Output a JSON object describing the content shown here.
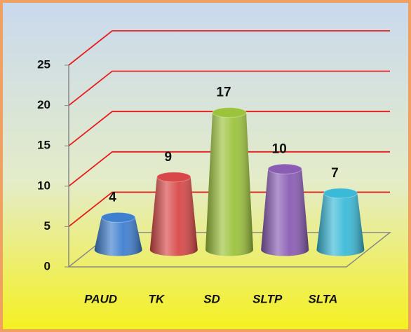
{
  "chart_data": {
    "type": "bar",
    "categories": [
      "PAUD",
      "TK",
      "SD",
      "SLTP",
      "SLTA"
    ],
    "values": [
      4,
      9,
      17,
      10,
      7
    ],
    "colors": [
      "#3f7fd0",
      "#d84848",
      "#9cc33c",
      "#8a5cb4",
      "#3bbad8"
    ],
    "ylim": [
      0,
      25
    ],
    "yticks": [
      0,
      5,
      10,
      15,
      20,
      25
    ],
    "grid": true,
    "grid_color": "#e81c1c"
  }
}
